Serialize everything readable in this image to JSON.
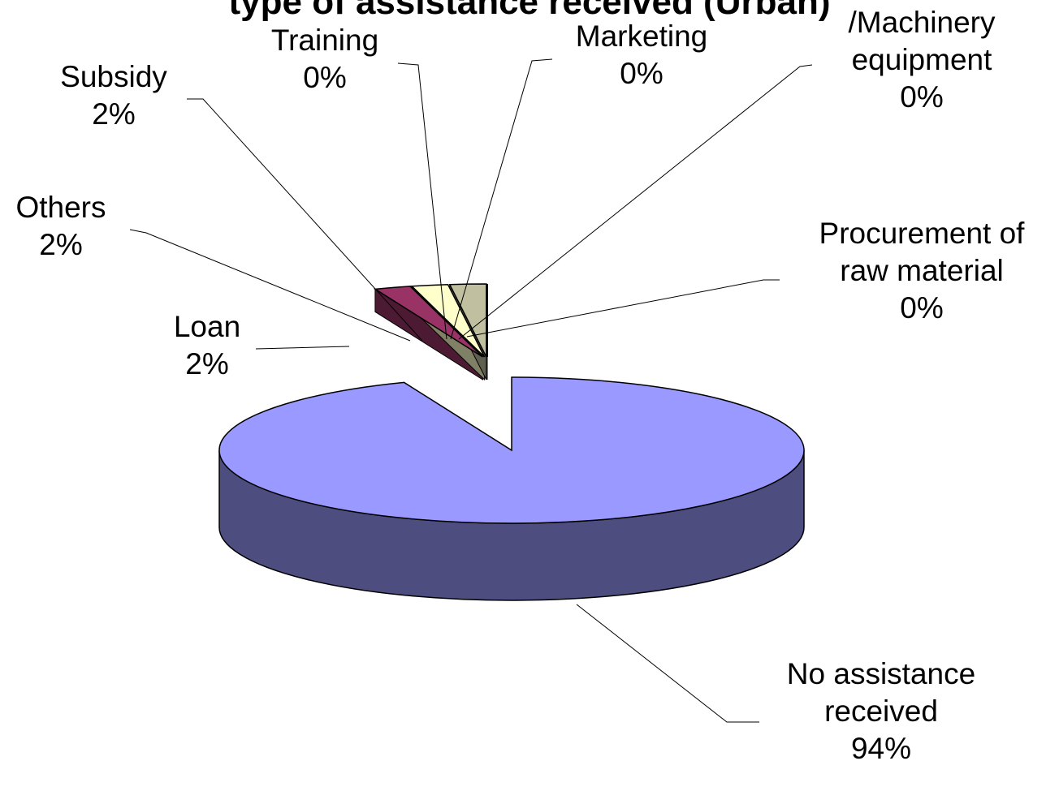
{
  "chart_data": {
    "type": "pie3d",
    "title": "type of assistance received (Urban)",
    "categories": [
      "No assistance received",
      "Loan",
      "Others",
      "Subsidy",
      "Training",
      "Marketing",
      "/Machinery equipment",
      "Procurement of raw material"
    ],
    "values": [
      94,
      2,
      2,
      2,
      0,
      0,
      0,
      0
    ],
    "value_labels": [
      "94%",
      "2%",
      "2%",
      "2%",
      "0%",
      "0%",
      "0%",
      "0%"
    ],
    "colors": [
      "#9999ff",
      "#993366",
      "#ffffcc",
      "#c0c0a0",
      "#0066cc",
      "#003366",
      "#99ccff",
      "#ccccff"
    ]
  }
}
